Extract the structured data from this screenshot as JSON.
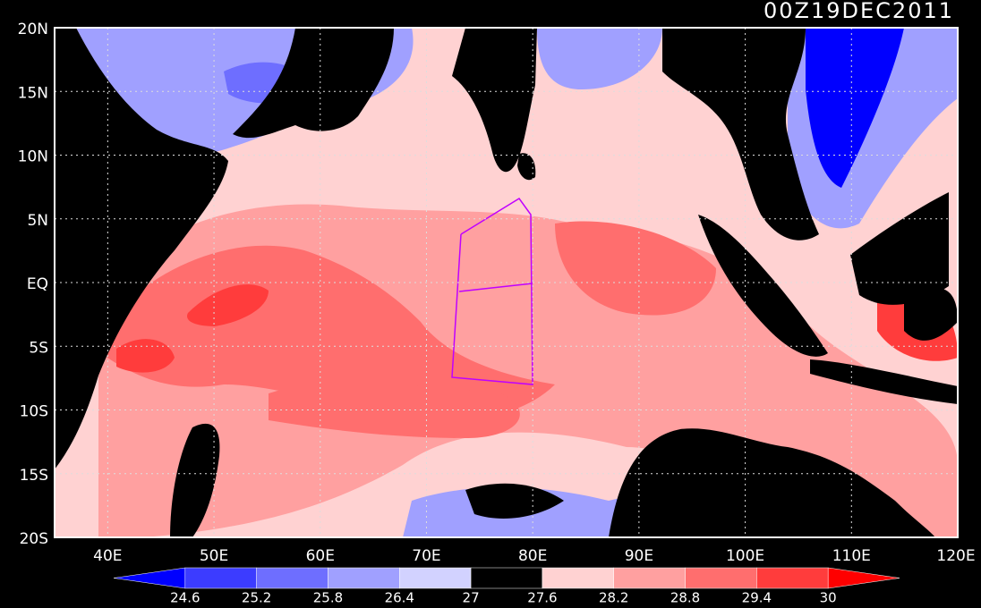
{
  "header": {
    "title": "00Z19DEC2011"
  },
  "map": {
    "lat_labels": [
      "20N",
      "15N",
      "10N",
      "5N",
      "EQ",
      "5S",
      "10S",
      "15S",
      "20S"
    ],
    "lon_labels": [
      "40E",
      "50E",
      "60E",
      "70E",
      "80E",
      "90E",
      "100E",
      "110E",
      "120E"
    ]
  },
  "colorbar": {
    "levels": [
      24.6,
      25.2,
      25.8,
      26.4,
      27,
      27.6,
      28.2,
      28.8,
      29.4,
      30
    ],
    "colors": [
      "#0000ff",
      "#3c3cff",
      "#6e6eff",
      "#a0a0ff",
      "#d2d2ff",
      "#000000",
      "#ffd2d2",
      "#ffa0a0",
      "#ff6e6e",
      "#ff3c3c",
      "#ff0000"
    ]
  }
}
